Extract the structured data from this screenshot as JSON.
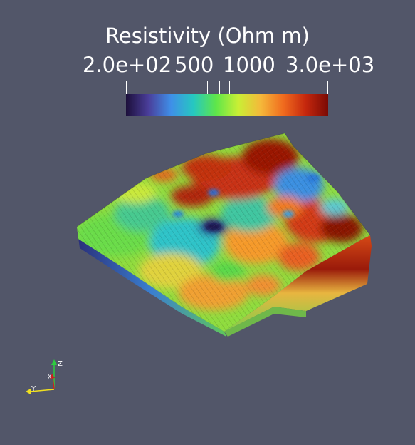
{
  "colorbar": {
    "title": "Resistivity (Ohm m)",
    "labels": {
      "min": "2.0e+02",
      "mid1": "500",
      "mid2": "1000",
      "max": "3.0e+03"
    },
    "colors": [
      "#1c0f3a",
      "#4a3e9a",
      "#3f8fe8",
      "#26c7c1",
      "#5ee64a",
      "#c9ef35",
      "#f5b83a",
      "#f06b1e",
      "#c5270d",
      "#7a0a04"
    ]
  },
  "axes": {
    "x": "X",
    "y": "Y",
    "z": "Z"
  },
  "background": "#525669"
}
